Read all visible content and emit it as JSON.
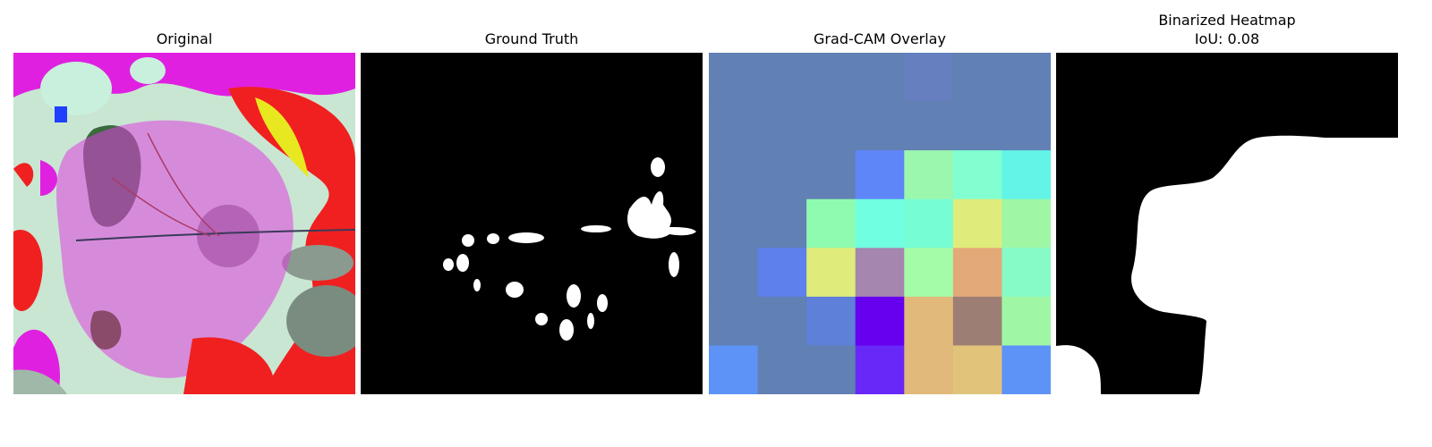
{
  "panels": {
    "original": {
      "title": "Original"
    },
    "ground_truth": {
      "title": "Ground Truth"
    },
    "gradcam": {
      "title": "Grad-CAM Overlay",
      "grid_colors": [
        [
          "#6180b4",
          "#6180b4",
          "#6180b4",
          "#6180b4",
          "#667fbe",
          "#6180b4",
          "#6180b4"
        ],
        [
          "#6180b4",
          "#6180b4",
          "#6180b4",
          "#6180b4",
          "#6180b4",
          "#6180b4",
          "#6180b4"
        ],
        [
          "#6180b4",
          "#6180b4",
          "#6180b4",
          "#5e86f8",
          "#9cf7ae",
          "#82ffd0",
          "#63f4e7"
        ],
        [
          "#6180b4",
          "#6180b4",
          "#8ffbb0",
          "#70ffe0",
          "#76fdd4",
          "#dfec7b",
          "#9ff7a6"
        ],
        [
          "#6180b4",
          "#5e80ec",
          "#dfec7b",
          "#a586ae",
          "#a4fba8",
          "#e3a978",
          "#86fbc8"
        ],
        [
          "#6180b4",
          "#6180b4",
          "#5e80d8",
          "#6600ee",
          "#e1b97a",
          "#9c7e74",
          "#9ff7a6"
        ],
        [
          "#5d93f6",
          "#6180b4",
          "#6180b4",
          "#6828f8",
          "#e1b97a",
          "#e1c47a",
          "#5d93f6"
        ]
      ]
    },
    "binarized": {
      "title_line1": "Binarized Heatmap",
      "title_line2": "IoU: 0.08"
    }
  },
  "colors": {
    "mask_fg": "#ffffff",
    "mask_bg": "#000000"
  }
}
